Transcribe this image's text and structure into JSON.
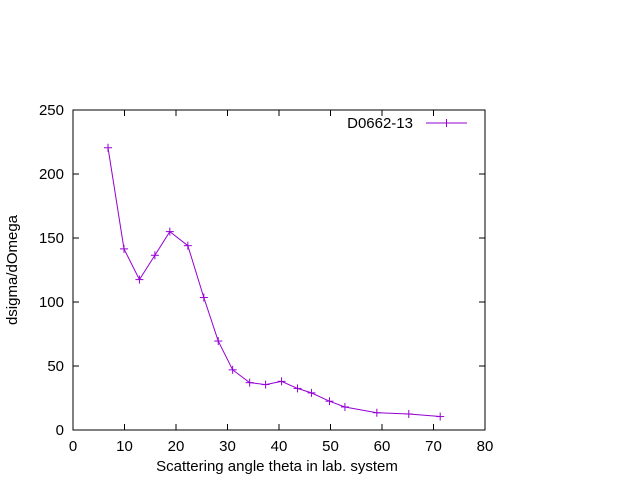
{
  "chart_data": {
    "type": "line",
    "title": "",
    "xlabel": "Scattering angle theta in lab. system",
    "ylabel": "dsigma/dOmega",
    "xlim": [
      0,
      80
    ],
    "ylim": [
      0,
      250
    ],
    "xticks": [
      0,
      10,
      20,
      30,
      40,
      50,
      60,
      70,
      80
    ],
    "yticks": [
      0,
      50,
      100,
      150,
      200,
      250
    ],
    "grid": false,
    "legend_position": "top-right",
    "series": [
      {
        "name": "D0662-13",
        "color": "#9400d3",
        "marker": "plus",
        "x": [
          6.8,
          9.9,
          12.9,
          15.9,
          18.8,
          22.3,
          25.4,
          28.2,
          31.0,
          34.3,
          37.4,
          40.5,
          43.6,
          46.3,
          49.8,
          52.8,
          59.0,
          65.2,
          71.3
        ],
        "y": [
          220.5,
          141.5,
          117.5,
          136.5,
          155,
          144,
          103.5,
          69.5,
          47,
          37,
          35.5,
          38,
          32.5,
          29,
          22.5,
          18,
          13.5,
          12.5,
          10.5
        ]
      }
    ]
  }
}
